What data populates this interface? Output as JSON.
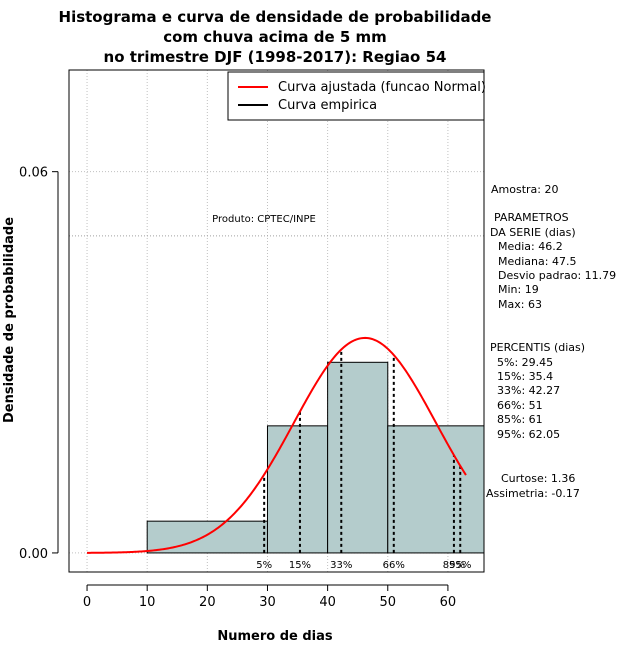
{
  "chart_data": {
    "type": "bar",
    "title_lines": [
      "Histograma e curva de densidade de probabilidade",
      "com chuva acima de 5 mm",
      "no trimestre DJF (1998-2017): Regiao 54"
    ],
    "xlabel": "Numero de dias",
    "ylabel": "Densidade de probabilidade",
    "xlim": [
      -3,
      66
    ],
    "ylim": [
      -0.003,
      0.076
    ],
    "x_ticks": [
      0,
      10,
      20,
      30,
      40,
      50,
      60
    ],
    "x_tick_labels": [
      "0",
      "10",
      "20",
      "30",
      "40",
      "50",
      "60"
    ],
    "y_ticks": [
      0.0,
      0.06
    ],
    "y_tick_labels": [
      "0.00",
      "0.06"
    ],
    "grid": true,
    "bins": [
      {
        "from": 10,
        "to": 30,
        "density": 0.005
      },
      {
        "from": 30,
        "to": 40,
        "density": 0.02
      },
      {
        "from": 40,
        "to": 50,
        "density": 0.03
      },
      {
        "from": 50,
        "to": 66,
        "density": 0.02
      }
    ],
    "hline": 0.0499,
    "fitted_curve": {
      "name": "Curva ajustada (funcao Normal)",
      "mean": 46.2,
      "sd": 11.79,
      "x_from": 0,
      "x_to": 63,
      "color": "#ff0000"
    },
    "empirical_curve": {
      "name": "Curva empirica",
      "color": "#000000"
    },
    "percentiles": [
      {
        "label": "5%",
        "value": 29.45
      },
      {
        "label": "15%",
        "value": 35.4
      },
      {
        "label": "33%",
        "value": 42.27
      },
      {
        "label": "66%",
        "value": 51
      },
      {
        "label": "85%",
        "value": 61
      },
      {
        "label": "95%",
        "value": 62.05
      }
    ],
    "legend_position": "top-right",
    "colors": {
      "bar_fill": "#b4cccc",
      "bar_edge": "#000000",
      "grid": "#c0c0c0",
      "fit": "#ff0000"
    }
  },
  "annotation": {
    "produto": "Produto: CPTEC/INPE"
  },
  "side_panel": {
    "amostra": "Amostra: 20",
    "parametros_title": [
      "PARAMETROS",
      "DA SERIE (dias)"
    ],
    "parametros": [
      "Media: 46.2",
      "Mediana: 47.5",
      "Desvio padrao: 11.79",
      "Min: 19",
      "Max: 63"
    ],
    "percentis_title": "PERCENTIS (dias)",
    "percentis": [
      "5%: 29.45",
      "15%: 35.4",
      "33%: 42.27",
      "66%: 51",
      "85%: 61",
      "95%: 62.05"
    ],
    "curtose": "Curtose: 1.36",
    "assimetria": "Assimetria: -0.17"
  }
}
